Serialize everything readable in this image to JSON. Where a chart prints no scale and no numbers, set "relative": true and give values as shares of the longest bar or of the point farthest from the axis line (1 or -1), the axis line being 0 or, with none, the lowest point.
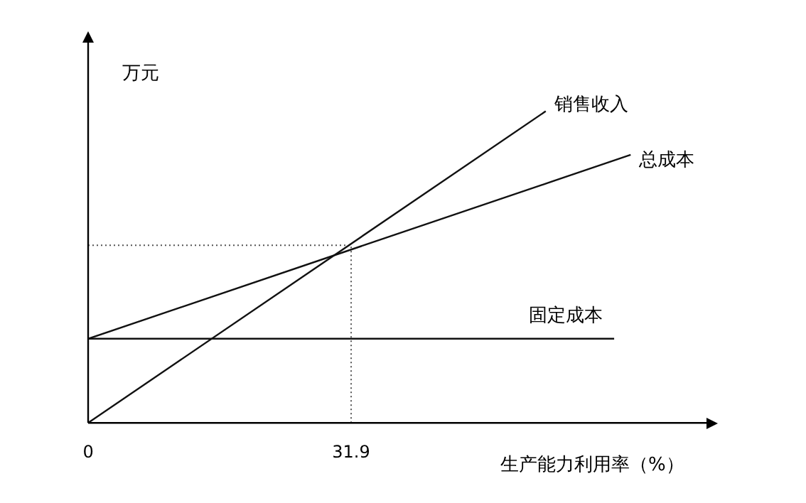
{
  "chart_data": {
    "type": "line",
    "relative": true,
    "ylabel": "万元",
    "xlabel": "生产能力利用率（%）",
    "xlim": [
      0,
      75
    ],
    "xticks": [
      0,
      31.9
    ],
    "grid": false,
    "legend": false,
    "marker": "none",
    "line_style": "solid",
    "series": [
      {
        "name": "销售收入",
        "color": "#111111",
        "x": [
          0,
          55.5
        ],
        "values": [
          0,
          1
        ]
      },
      {
        "name": "总成本",
        "color": "#111111",
        "x": [
          0,
          65.8
        ],
        "values": [
          0.27,
          0.86
        ]
      },
      {
        "name": "固定成本",
        "color": "#111111",
        "x": [
          0,
          63.8
        ],
        "values": [
          0.27,
          0.27
        ]
      }
    ],
    "ref_lines": [
      {
        "axis": "x",
        "value": 31.9,
        "line_style": "dotted",
        "color": "#555555"
      },
      {
        "axis": "y",
        "value": 0.57,
        "line_style": "dotted",
        "color": "#555555"
      }
    ]
  }
}
